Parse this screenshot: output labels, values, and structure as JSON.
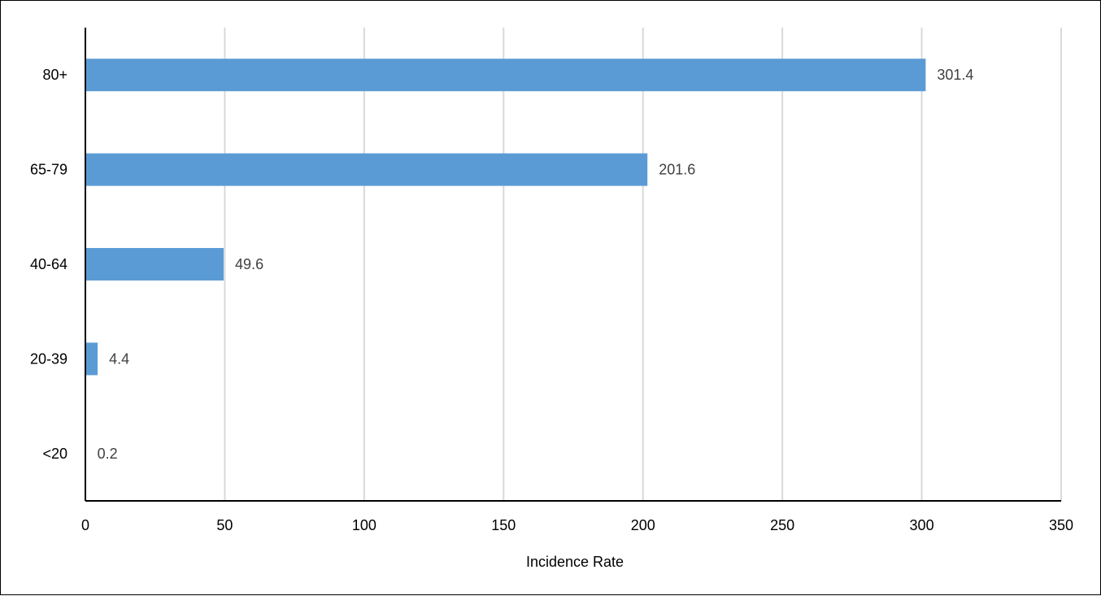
{
  "chart_data": {
    "type": "bar",
    "orientation": "horizontal",
    "title": "",
    "xlabel": "Incidence Rate",
    "ylabel": "",
    "categories": [
      "<20",
      "20-39",
      "40-64",
      "65-79",
      "80+"
    ],
    "values": [
      0.2,
      4.4,
      49.6,
      201.6,
      301.4
    ],
    "value_labels": [
      "0.2",
      "4.4",
      "49.6",
      "201.6",
      "301.4"
    ],
    "xlim": [
      0,
      350
    ],
    "xticks": [
      "0",
      "50",
      "100",
      "150",
      "200",
      "250",
      "300",
      "350"
    ],
    "grid": "vertical",
    "legend": "none",
    "bar_color": "#5B9BD5",
    "grid_color": "#D9D9D9"
  }
}
